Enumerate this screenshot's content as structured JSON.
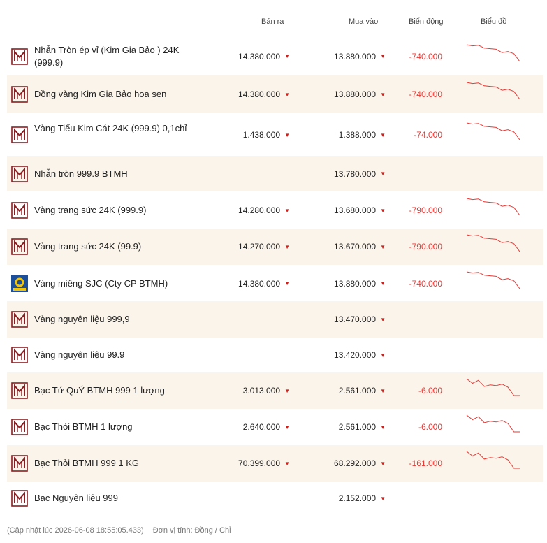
{
  "header": {
    "ban_ra": "Bán ra",
    "mua_vao": "Mua vào",
    "bien_dong": "Biến động",
    "bieu_do": "Biểu đồ"
  },
  "rows": [
    {
      "name": "Nhẫn Tròn ép vỉ (Kim Gia Bảo ) 24K (999.9)",
      "ban": "14.380.000",
      "mua": "13.880.000",
      "chg": "-740.000",
      "logo": "btmh-logo",
      "spark": [
        60,
        58,
        59,
        54,
        53,
        52,
        46,
        48,
        44,
        30
      ]
    },
    {
      "name": "Đồng vàng Kim Gia Bảo hoa sen",
      "ban": "14.380.000",
      "mua": "13.880.000",
      "chg": "-740.000",
      "logo": "btmh-logo",
      "spark": [
        60,
        58,
        59,
        54,
        53,
        52,
        46,
        48,
        44,
        30
      ]
    },
    {
      "name": "Vàng Tiểu Kim Cát 24K (999.9) 0,1chỉ",
      "ban": "1.438.000",
      "mua": "1.388.000",
      "chg": "-74.000",
      "logo": "btmh-logo",
      "spark": [
        60,
        58,
        59,
        54,
        53,
        52,
        46,
        48,
        44,
        30
      ]
    },
    {
      "name": "Nhẫn tròn 999.9 BTMH",
      "ban": "",
      "mua": "13.780.000",
      "chg": "",
      "logo": "btmh-logo",
      "spark": []
    },
    {
      "name": "Vàng trang sức 24K (999.9)",
      "ban": "14.280.000",
      "mua": "13.680.000",
      "chg": "-790.000",
      "logo": "btmh-logo",
      "spark": [
        60,
        58,
        59,
        54,
        53,
        52,
        46,
        48,
        44,
        30
      ]
    },
    {
      "name": "Vàng trang sức 24K (99.9)",
      "ban": "14.270.000",
      "mua": "13.670.000",
      "chg": "-790.000",
      "logo": "btmh-logo",
      "spark": [
        60,
        58,
        59,
        54,
        53,
        52,
        46,
        48,
        44,
        30
      ]
    },
    {
      "name": "Vàng miếng SJC (Cty CP BTMH)",
      "ban": "14.380.000",
      "mua": "13.880.000",
      "chg": "-740.000",
      "logo": "sjc-logo",
      "spark": [
        60,
        58,
        59,
        54,
        53,
        52,
        46,
        48,
        44,
        30
      ]
    },
    {
      "name": "Vàng nguyên liệu 999,9",
      "ban": "",
      "mua": "13.470.000",
      "chg": "",
      "logo": "btmh-logo",
      "spark": []
    },
    {
      "name": "Vàng nguyên liệu 99.9",
      "ban": "",
      "mua": "13.420.000",
      "chg": "",
      "logo": "btmh-logo",
      "spark": []
    },
    {
      "name": "Bạc Tứ QuÝ BTMH 999 1 lượng",
      "ban": "3.013.000",
      "mua": "2.561.000",
      "chg": "-6.000",
      "logo": "btmh-logo",
      "spark": [
        60,
        54,
        58,
        50,
        52,
        51,
        53,
        49,
        38,
        38
      ]
    },
    {
      "name": "Bạc Thỏi BTMH 1 lượng",
      "ban": "2.640.000",
      "mua": "2.561.000",
      "chg": "-6.000",
      "logo": "btmh-logo",
      "spark": [
        60,
        54,
        58,
        50,
        52,
        51,
        53,
        49,
        38,
        38
      ]
    },
    {
      "name": "Bạc Thỏi BTMH 999 1 KG",
      "ban": "70.399.000",
      "mua": "68.292.000",
      "chg": "-161.000",
      "logo": "btmh-logo",
      "spark": [
        60,
        54,
        58,
        50,
        52,
        51,
        53,
        49,
        38,
        38
      ]
    },
    {
      "name": "Bạc Nguyên liệu 999",
      "ban": "",
      "mua": "2.152.000",
      "chg": "",
      "logo": "btmh-logo",
      "spark": []
    }
  ],
  "footer": {
    "updated": "(Cập nhật lúc 2026-06-08 18:55:05.433)",
    "unit": "Đơn vị tính: Đồng / Chỉ"
  },
  "colors": {
    "alt_row": "#fbf4ea",
    "down": "#e53935",
    "logo_red": "#8b1d22",
    "sjc_blue": "#1b4f9c",
    "sjc_yellow": "#f5c400"
  }
}
